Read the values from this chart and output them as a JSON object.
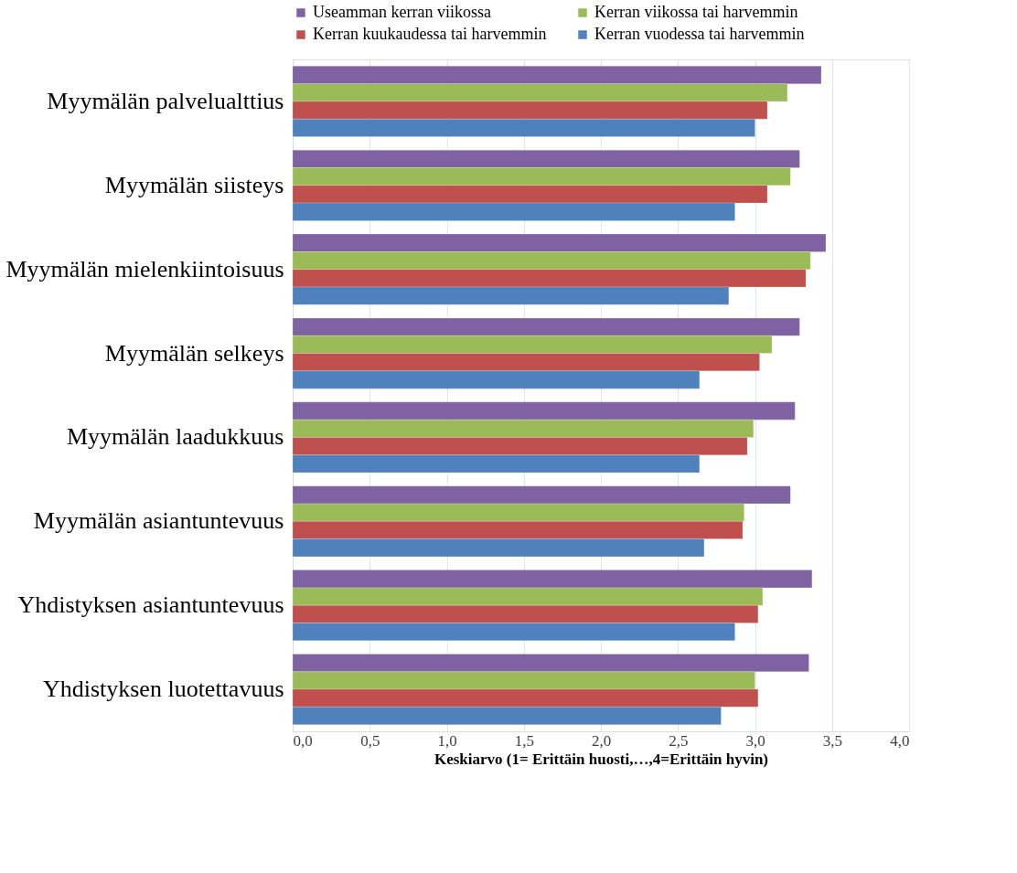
{
  "chart_data": {
    "type": "bar",
    "orientation": "horizontal",
    "xlabel": "Keskiarvo (1= Erittäin huosti,…,4=Erittäin hyvin)",
    "categories": [
      "Myymälän palvelualttius",
      "Myymälän siisteys",
      "Myymälän mielenkiintoisuus",
      "Myymälän selkeys",
      "Myymälän laadukkuus",
      "Myymälän asiantuntevuus",
      "Yhdistyksen asiantuntevuus",
      "Yhdistyksen luotettavuus"
    ],
    "series": [
      {
        "name": "Useamman kerran viikossa",
        "color": "#7e62a1",
        "values": [
          3.43,
          3.29,
          3.46,
          3.29,
          3.26,
          3.23,
          3.37,
          3.35
        ]
      },
      {
        "name": "Kerran viikossa tai harvemmin",
        "color": "#9bbb59",
        "values": [
          3.21,
          3.23,
          3.36,
          3.11,
          2.99,
          2.93,
          3.05,
          3.0
        ]
      },
      {
        "name": "Kerran kuukaudessa tai harvemmin",
        "color": "#c0504d",
        "values": [
          3.08,
          3.08,
          3.33,
          3.03,
          2.95,
          2.92,
          3.02,
          3.02
        ]
      },
      {
        "name": "Kerran vuodessa tai harvemmin",
        "color": "#4f81bd",
        "values": [
          3.0,
          2.87,
          2.83,
          2.64,
          2.64,
          2.67,
          2.87,
          2.78
        ]
      }
    ],
    "xlim": [
      0,
      4
    ],
    "xticks": [
      {
        "value": 0,
        "label": "0,0"
      },
      {
        "value": 0.5,
        "label": "0,5"
      },
      {
        "value": 1,
        "label": "1,0"
      },
      {
        "value": 1.5,
        "label": "1,5"
      },
      {
        "value": 2,
        "label": "2,0"
      },
      {
        "value": 2.5,
        "label": "2,5"
      },
      {
        "value": 3,
        "label": "3,0"
      },
      {
        "value": 3.5,
        "label": "3,5"
      },
      {
        "value": 4,
        "label": "4,0"
      }
    ],
    "grid": "x",
    "legend": "top"
  }
}
